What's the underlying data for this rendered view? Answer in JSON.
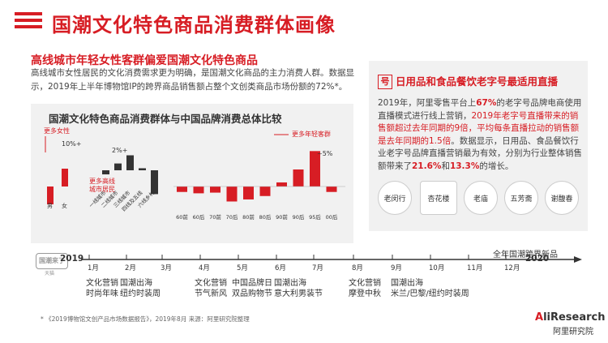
{
  "header": {
    "title": "国潮文化特色商品消费群体画像"
  },
  "left": {
    "subheading": "高线城市年轻女性客群偏爱国潮文化特色商品",
    "paragraph": "高线城市女性居民的文化消费需求更为明确，是国潮文化商品的主力消费人群。数据显示，2019年上半年博物馆IP的跨界商品销售额占整个文创类商品市场份额的72%*。"
  },
  "chart": {
    "title": "国潮文化特色商品消费群体与中国品牌消费总体比较",
    "annotations": {
      "more_female": "更多女性",
      "female_pct": "10%+",
      "city_pct": "2%+",
      "more_highline": "更多高线\n城市居民",
      "more_young": "更多年轻客群",
      "young_pct": "~5%"
    }
  },
  "chart_data": {
    "type": "bar",
    "gender": {
      "categories": [
        "男",
        "女"
      ],
      "values": [
        -10,
        10
      ]
    },
    "city_tier": {
      "categories": [
        "一线城市",
        "二线城市",
        "三线城市",
        "四线及五线",
        "六线乡村"
      ],
      "values": [
        -0.6,
        1.0,
        2.2,
        0.3,
        -3.5
      ]
    },
    "age": {
      "categories": [
        "60前",
        "60后",
        "70前",
        "70后",
        "80前",
        "80后",
        "90前",
        "90后",
        "95后",
        "00后"
      ],
      "values": [
        -0.8,
        -1.0,
        -0.9,
        -2.2,
        -1.9,
        -1.4,
        0.6,
        2.5,
        5.2,
        -0.8
      ]
    }
  },
  "right": {
    "title": "日用品和食品餐饮老字号最适用直播",
    "t1": "2019年，阿里零售平台上",
    "t2": "67%",
    "t3": "的老字号品牌电商使用直播模式进行线上营销，",
    "t4": "2019年老字号直播带来的销售额超过去年同期的9倍，平均每条直播拉动的销售额是去年同期的1.5倍",
    "t5": "。数据显示，日用品、食品餐饮行业老字号品牌直播营销最为有效，分别为行业整体销售额带来了",
    "t6": "21.6%",
    "t7": "和",
    "t8": "13.3%",
    "t9": "的增长。",
    "logos": [
      "老闵行",
      "杏花楼",
      "老庙",
      "五芳斋",
      "谢馥春"
    ]
  },
  "timeline": {
    "badge": "国潮来了",
    "badge_sub": "天猫",
    "new_items": "全年国潮跨界新品",
    "year_start": "2019",
    "year_end": "2020",
    "months": [
      "1月",
      "2月",
      "3月",
      "4月",
      "5月",
      "6月",
      "7月",
      "8月",
      "9月",
      "10月",
      "11月",
      "12月"
    ],
    "events": [
      {
        "text": "文化营销\n时尚年味"
      },
      {
        "text": "国潮出海\n纽约时装周"
      },
      {
        "text": "文化营销\n节气新风"
      },
      {
        "text": "中国品牌日\n双品购物节"
      },
      {
        "text": "国潮出海\n意大利男装节"
      },
      {
        "text": "文化营销\n摩登中秋"
      },
      {
        "text": "国潮出海\n米兰/巴黎/纽约时装周"
      }
    ]
  },
  "footer": {
    "note": "* 《2019博物馆文创产品市场数据报告》，2019年8月    来源：阿里研究院整理",
    "brand": "AliResearch",
    "brand_sub": "阿里研究院"
  },
  "colors": {
    "accent": "#d71d24",
    "dark": "#333333"
  }
}
